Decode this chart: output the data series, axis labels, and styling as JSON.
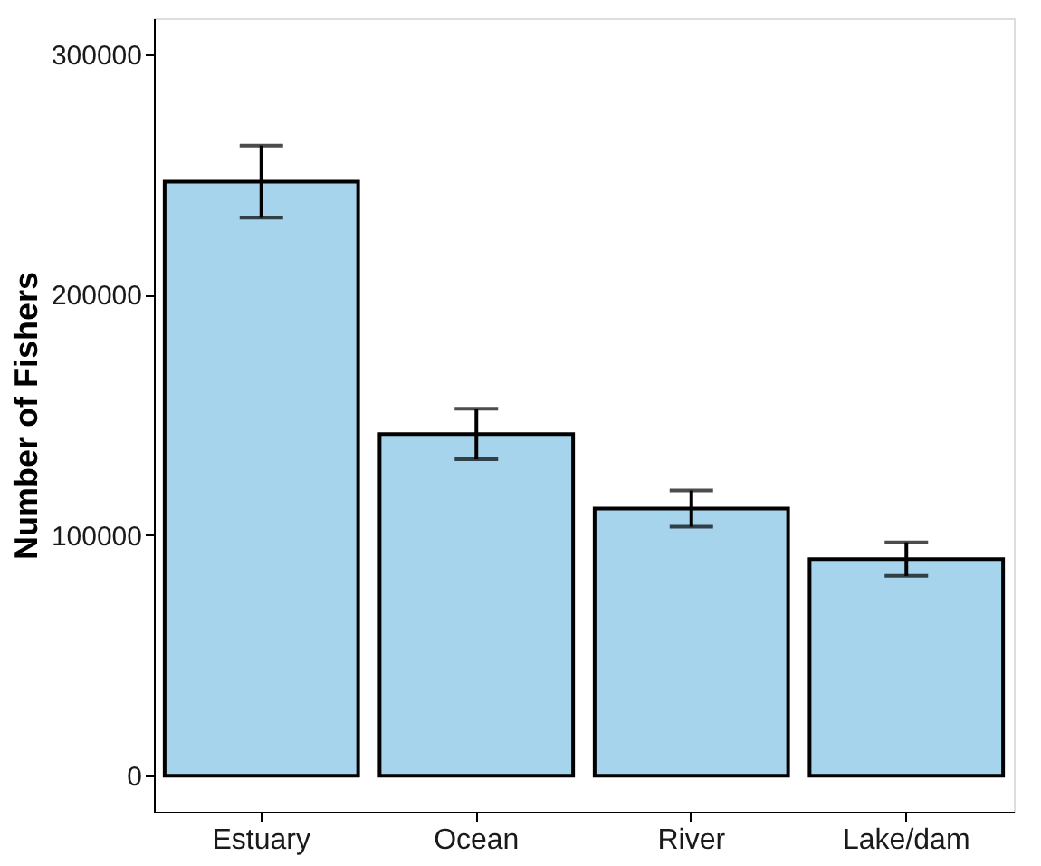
{
  "chart_data": {
    "type": "bar",
    "ylabel": "Number of Fishers",
    "categories": [
      "Estuary",
      "Ocean",
      "River",
      "Lake/dam"
    ],
    "values": [
      247000,
      142000,
      111000,
      90000
    ],
    "errors": [
      15000,
      10500,
      7500,
      7000
    ],
    "color": "#a6d4ec",
    "ylim": [
      -15000,
      315000
    ],
    "yticks": [
      0,
      100000,
      200000,
      300000
    ],
    "grid": false
  }
}
